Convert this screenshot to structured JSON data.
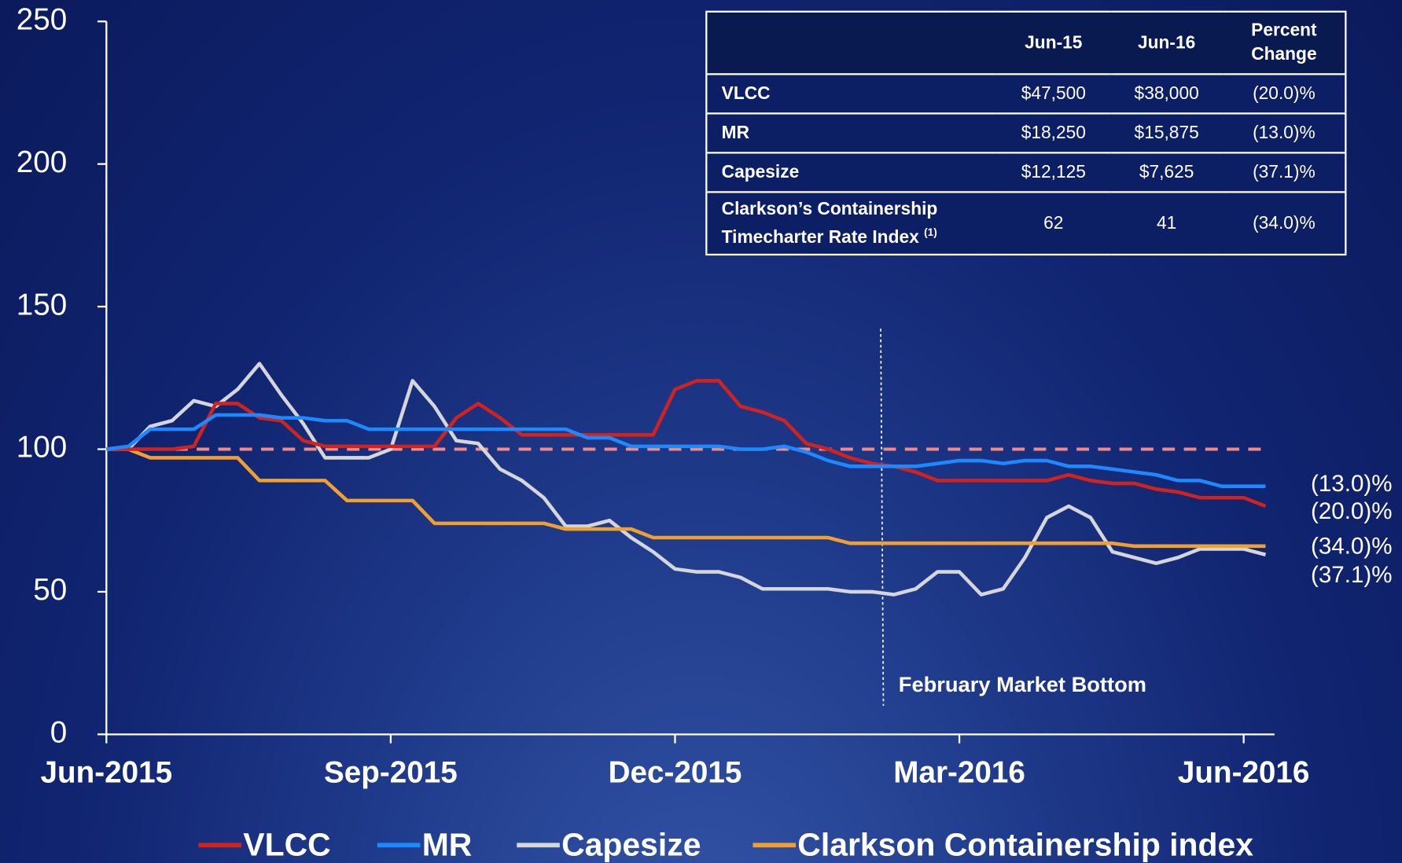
{
  "chart_data": {
    "type": "line",
    "categories": [
      "Jun-2015",
      null,
      null,
      null,
      null,
      null,
      null,
      null,
      null,
      null,
      null,
      null,
      null,
      "Sep-2015",
      null,
      null,
      null,
      null,
      null,
      null,
      null,
      null,
      null,
      null,
      null,
      null,
      "Dec-2015",
      null,
      null,
      null,
      null,
      null,
      null,
      null,
      null,
      null,
      null,
      null,
      null,
      "Mar-2016",
      null,
      null,
      null,
      null,
      null,
      null,
      null,
      null,
      null,
      null,
      null,
      null,
      "Jun-2016",
      null
    ],
    "ylim": [
      0,
      250
    ],
    "yticks": [
      0,
      50,
      100,
      150,
      200,
      250
    ],
    "reference_line": {
      "value": 100,
      "color": "#f08a8a"
    },
    "annotation": "February Market Bottom",
    "legend": "bottom",
    "series": [
      {
        "name": "VLCC",
        "color": "#d0231f",
        "end_label": "(20.0)%",
        "values": [
          100,
          100,
          100,
          100,
          101,
          116,
          116,
          111,
          110,
          103,
          101,
          101,
          101,
          101,
          101,
          101,
          111,
          116,
          111,
          105,
          105,
          105,
          105,
          105,
          105,
          105,
          121,
          124,
          124,
          115,
          113,
          110,
          102,
          100,
          97,
          95,
          94,
          92,
          89,
          89,
          89,
          89,
          89,
          89,
          91,
          89,
          88,
          88,
          86,
          85,
          83,
          83,
          83,
          80
        ]
      },
      {
        "name": "MR",
        "color": "#1e88ff",
        "end_label": "(13.0)%",
        "values": [
          100,
          101,
          107,
          107,
          107,
          112,
          112,
          112,
          111,
          111,
          110,
          110,
          107,
          107,
          107,
          107,
          107,
          107,
          107,
          107,
          107,
          107,
          104,
          104,
          101,
          101,
          101,
          101,
          101,
          100,
          100,
          101,
          99,
          96,
          94,
          94,
          94,
          94,
          95,
          96,
          96,
          95,
          96,
          96,
          94,
          94,
          93,
          92,
          91,
          89,
          89,
          87,
          87,
          87
        ]
      },
      {
        "name": "Capesize",
        "color": "#d4d6da",
        "end_label": "(37.1)%",
        "values": [
          100,
          100,
          108,
          110,
          117,
          115,
          121,
          130,
          119,
          109,
          97,
          97,
          97,
          100,
          124,
          115,
          103,
          102,
          93,
          89,
          83,
          73,
          73,
          75,
          69,
          64,
          58,
          57,
          57,
          55,
          51,
          51,
          51,
          51,
          50,
          50,
          49,
          51,
          57,
          57,
          49,
          51,
          62,
          76,
          80,
          76,
          64,
          62,
          60,
          62,
          65,
          65,
          65,
          63
        ]
      },
      {
        "name": "Clarkson Containership index",
        "color": "#f0a030",
        "end_label": "(34.0)%",
        "values": [
          100,
          100,
          97,
          97,
          97,
          97,
          97,
          89,
          89,
          89,
          89,
          82,
          82,
          82,
          82,
          74,
          74,
          74,
          74,
          74,
          74,
          72,
          72,
          72,
          72,
          69,
          69,
          69,
          69,
          69,
          69,
          69,
          69,
          69,
          67,
          67,
          67,
          67,
          67,
          67,
          67,
          67,
          67,
          67,
          67,
          67,
          67,
          66,
          66,
          66,
          66,
          66,
          66,
          66
        ]
      }
    ]
  },
  "table": {
    "columns": [
      "Jun-15",
      "Jun-16",
      "Percent Change"
    ],
    "rows": [
      {
        "label": "VLCC",
        "cells": [
          "$47,500",
          "$38,000",
          "(20.0)%"
        ]
      },
      {
        "label": "MR",
        "cells": [
          "$18,250",
          "$15,875",
          "(13.0)%"
        ]
      },
      {
        "label": "Capesize",
        "cells": [
          "$12,125",
          "$7,625",
          "(37.1)%"
        ]
      },
      {
        "label": "Clarkson’s Containership Timecharter Rate Index",
        "footnote": "(1)",
        "cells": [
          "62",
          "41",
          "(34.0)%"
        ]
      }
    ]
  }
}
